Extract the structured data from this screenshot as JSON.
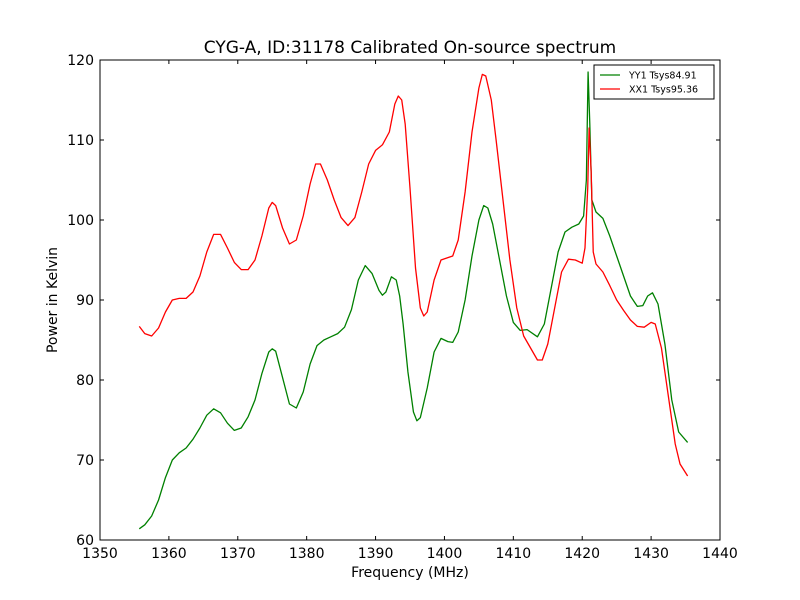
{
  "chart_data": {
    "type": "line",
    "title": "CYG-A, ID:31178 Calibrated On-source spectrum",
    "xlabel": "Frequency (MHz)",
    "ylabel": "Power in Kelvin",
    "xlim": [
      1350,
      1440
    ],
    "ylim": [
      60,
      120
    ],
    "xticks": [
      1350,
      1360,
      1370,
      1380,
      1390,
      1400,
      1410,
      1420,
      1430,
      1440
    ],
    "yticks": [
      60,
      70,
      80,
      90,
      100,
      110,
      120
    ],
    "grid": false,
    "legend_position": "top-right",
    "series": [
      {
        "name": "YY1 Tsys84.91",
        "color": "#008000",
        "points": [
          [
            1355.7,
            61.4
          ],
          [
            1356.5,
            61.9
          ],
          [
            1357.5,
            63.0
          ],
          [
            1358.5,
            65.0
          ],
          [
            1359.5,
            67.8
          ],
          [
            1360.5,
            70.0
          ],
          [
            1361.5,
            70.9
          ],
          [
            1362.5,
            71.5
          ],
          [
            1363.5,
            72.6
          ],
          [
            1364.5,
            74.0
          ],
          [
            1365.5,
            75.6
          ],
          [
            1366.5,
            76.4
          ],
          [
            1367.5,
            75.9
          ],
          [
            1368.5,
            74.6
          ],
          [
            1369.5,
            73.7
          ],
          [
            1370.5,
            74.0
          ],
          [
            1371.5,
            75.4
          ],
          [
            1372.5,
            77.5
          ],
          [
            1373.5,
            80.8
          ],
          [
            1374.5,
            83.5
          ],
          [
            1375.0,
            83.9
          ],
          [
            1375.5,
            83.6
          ],
          [
            1376.5,
            80.3
          ],
          [
            1377.5,
            77.0
          ],
          [
            1378.5,
            76.5
          ],
          [
            1379.5,
            78.5
          ],
          [
            1380.5,
            82.0
          ],
          [
            1381.5,
            84.3
          ],
          [
            1382.5,
            85.0
          ],
          [
            1383.5,
            85.4
          ],
          [
            1384.5,
            85.8
          ],
          [
            1385.5,
            86.6
          ],
          [
            1386.5,
            88.8
          ],
          [
            1387.5,
            92.5
          ],
          [
            1388.5,
            94.3
          ],
          [
            1389.5,
            93.3
          ],
          [
            1390.5,
            91.2
          ],
          [
            1391.0,
            90.6
          ],
          [
            1391.5,
            91.0
          ],
          [
            1392.3,
            92.9
          ],
          [
            1393.0,
            92.5
          ],
          [
            1393.5,
            90.5
          ],
          [
            1394.0,
            87.0
          ],
          [
            1394.7,
            81.0
          ],
          [
            1395.5,
            76.0
          ],
          [
            1396.0,
            74.9
          ],
          [
            1396.5,
            75.3
          ],
          [
            1397.5,
            79.0
          ],
          [
            1398.5,
            83.5
          ],
          [
            1399.5,
            85.2
          ],
          [
            1400.5,
            84.8
          ],
          [
            1401.2,
            84.7
          ],
          [
            1402.0,
            86.0
          ],
          [
            1403.0,
            90.0
          ],
          [
            1404.0,
            95.5
          ],
          [
            1405.0,
            100.0
          ],
          [
            1405.7,
            101.8
          ],
          [
            1406.3,
            101.5
          ],
          [
            1407.0,
            99.5
          ],
          [
            1408.0,
            95.0
          ],
          [
            1409.0,
            90.5
          ],
          [
            1410.0,
            87.2
          ],
          [
            1411.0,
            86.2
          ],
          [
            1412.0,
            86.3
          ],
          [
            1413.5,
            85.4
          ],
          [
            1414.5,
            87.0
          ],
          [
            1415.5,
            91.5
          ],
          [
            1416.5,
            96.0
          ],
          [
            1417.5,
            98.5
          ],
          [
            1418.5,
            99.1
          ],
          [
            1419.5,
            99.5
          ],
          [
            1420.2,
            100.5
          ],
          [
            1420.6,
            105.0
          ],
          [
            1420.85,
            118.5
          ],
          [
            1421.1,
            112.0
          ],
          [
            1421.4,
            102.5
          ],
          [
            1422.0,
            101.0
          ],
          [
            1423.0,
            100.2
          ],
          [
            1424.0,
            98.0
          ],
          [
            1425.0,
            95.5
          ],
          [
            1426.0,
            93.0
          ],
          [
            1427.0,
            90.5
          ],
          [
            1428.0,
            89.2
          ],
          [
            1428.8,
            89.3
          ],
          [
            1429.5,
            90.5
          ],
          [
            1430.2,
            90.9
          ],
          [
            1431.0,
            89.5
          ],
          [
            1432.0,
            84.5
          ],
          [
            1433.0,
            77.5
          ],
          [
            1434.0,
            73.5
          ],
          [
            1435.3,
            72.2
          ]
        ]
      },
      {
        "name": "XX1 Tsys95.36",
        "color": "#ff0000",
        "points": [
          [
            1355.7,
            86.7
          ],
          [
            1356.5,
            85.8
          ],
          [
            1357.5,
            85.5
          ],
          [
            1358.5,
            86.5
          ],
          [
            1359.5,
            88.5
          ],
          [
            1360.5,
            90.0
          ],
          [
            1361.5,
            90.2
          ],
          [
            1362.5,
            90.2
          ],
          [
            1363.5,
            91.0
          ],
          [
            1364.5,
            93.0
          ],
          [
            1365.5,
            96.0
          ],
          [
            1366.5,
            98.2
          ],
          [
            1367.5,
            98.2
          ],
          [
            1368.5,
            96.5
          ],
          [
            1369.5,
            94.7
          ],
          [
            1370.5,
            93.8
          ],
          [
            1371.5,
            93.8
          ],
          [
            1372.5,
            95.0
          ],
          [
            1373.5,
            98.0
          ],
          [
            1374.5,
            101.5
          ],
          [
            1375.0,
            102.2
          ],
          [
            1375.5,
            101.8
          ],
          [
            1376.5,
            99.0
          ],
          [
            1377.5,
            97.0
          ],
          [
            1378.5,
            97.5
          ],
          [
            1379.5,
            100.5
          ],
          [
            1380.5,
            104.5
          ],
          [
            1381.3,
            107.0
          ],
          [
            1382.0,
            107.0
          ],
          [
            1383.0,
            105.0
          ],
          [
            1384.0,
            102.5
          ],
          [
            1385.0,
            100.3
          ],
          [
            1386.0,
            99.3
          ],
          [
            1387.0,
            100.3
          ],
          [
            1388.0,
            103.5
          ],
          [
            1389.0,
            107.0
          ],
          [
            1390.0,
            108.7
          ],
          [
            1391.0,
            109.4
          ],
          [
            1392.0,
            111.0
          ],
          [
            1392.8,
            114.5
          ],
          [
            1393.3,
            115.5
          ],
          [
            1393.8,
            115.0
          ],
          [
            1394.3,
            112.0
          ],
          [
            1395.0,
            104.0
          ],
          [
            1395.8,
            94.0
          ],
          [
            1396.5,
            89.0
          ],
          [
            1397.0,
            88.0
          ],
          [
            1397.5,
            88.5
          ],
          [
            1398.5,
            92.5
          ],
          [
            1399.5,
            95.0
          ],
          [
            1400.5,
            95.3
          ],
          [
            1401.2,
            95.5
          ],
          [
            1402.0,
            97.5
          ],
          [
            1403.0,
            103.5
          ],
          [
            1404.0,
            111.0
          ],
          [
            1405.0,
            116.5
          ],
          [
            1405.5,
            118.2
          ],
          [
            1406.0,
            118.0
          ],
          [
            1406.8,
            115.0
          ],
          [
            1407.5,
            110.0
          ],
          [
            1408.5,
            102.5
          ],
          [
            1409.5,
            95.0
          ],
          [
            1410.5,
            89.0
          ],
          [
            1411.5,
            85.5
          ],
          [
            1412.5,
            84.0
          ],
          [
            1413.5,
            82.5
          ],
          [
            1414.2,
            82.5
          ],
          [
            1415.0,
            84.5
          ],
          [
            1416.0,
            89.0
          ],
          [
            1417.0,
            93.5
          ],
          [
            1418.0,
            95.1
          ],
          [
            1419.0,
            95.0
          ],
          [
            1420.0,
            94.6
          ],
          [
            1420.4,
            96.5
          ],
          [
            1420.8,
            104.0
          ],
          [
            1421.0,
            111.5
          ],
          [
            1421.3,
            106.0
          ],
          [
            1421.6,
            96.0
          ],
          [
            1422.0,
            94.5
          ],
          [
            1423.0,
            93.5
          ],
          [
            1424.0,
            91.8
          ],
          [
            1425.0,
            90.0
          ],
          [
            1426.0,
            88.7
          ],
          [
            1427.0,
            87.5
          ],
          [
            1428.0,
            86.7
          ],
          [
            1429.0,
            86.6
          ],
          [
            1430.0,
            87.2
          ],
          [
            1430.6,
            87.0
          ],
          [
            1431.5,
            84.0
          ],
          [
            1432.5,
            78.0
          ],
          [
            1433.5,
            72.0
          ],
          [
            1434.2,
            69.5
          ],
          [
            1435.3,
            68.0
          ]
        ]
      }
    ]
  }
}
